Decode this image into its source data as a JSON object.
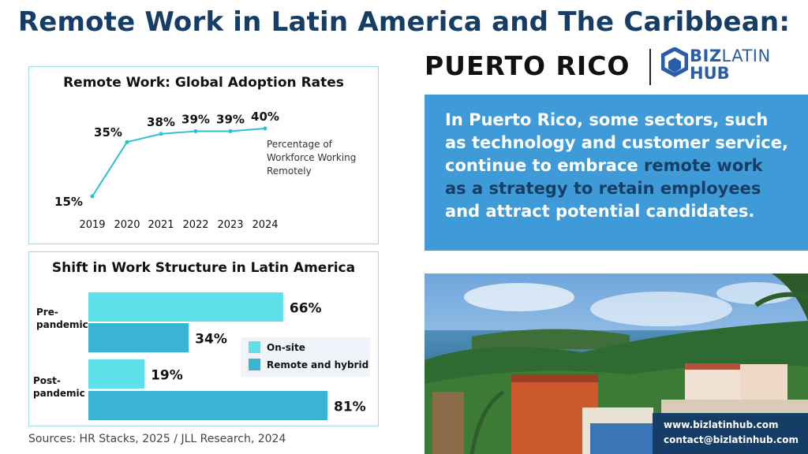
{
  "title": "Remote Work in Latin America and The Caribbean:",
  "country": "PUERTO RICO",
  "logo": {
    "biz": "BIZ",
    "latin": "LATIN",
    "hub": "HUB"
  },
  "callout": {
    "part1": "In Puerto Rico, some sectors, such as technology and customer service, continue to embrace ",
    "highlight": "remote work as a strategy to retain employees",
    "part2": " and attract potential candidates."
  },
  "contact": {
    "website": "www.bizlatinhub.com",
    "email": "contact@bizlatinhub.com"
  },
  "sources": "Sources: HR Stacks, 2025 /  JLL Research, 2024",
  "colors": {
    "title": "#163d66",
    "line": "#2bc0d2",
    "onsite": "#5ee0ea",
    "remote": "#3bb3d3",
    "callout": "#3f9bd7"
  },
  "chart_data": [
    {
      "type": "line",
      "title": "Remote Work: Global Adoption Rates",
      "x": [
        "2019",
        "2020",
        "2021",
        "2022",
        "2023",
        "2024"
      ],
      "y": [
        15,
        35,
        38,
        39,
        39,
        40
      ],
      "data_labels": [
        "15%",
        "35%",
        "38%",
        "39%",
        "39%",
        "40%"
      ],
      "annotation": "Percentage of Workforce Working Remotely",
      "annotation_lines": [
        "Percentage of",
        "Workforce Working",
        "Remotely"
      ],
      "grid": false
    },
    {
      "type": "bar",
      "orientation": "horizontal",
      "title": "Shift in Work Structure in Latin America",
      "categories": [
        "Pre-pandemic",
        "Post-pandemic"
      ],
      "category_lines": [
        [
          "Pre-",
          "pandemic"
        ],
        [
          "Post-",
          "pandemic"
        ]
      ],
      "series": [
        {
          "name": "On-site",
          "values": [
            66,
            19
          ]
        },
        {
          "name": "Remote and hybrid",
          "values": [
            34,
            81
          ]
        }
      ],
      "data_labels": [
        [
          "66%",
          "19%"
        ],
        [
          "34%",
          "81%"
        ]
      ],
      "legend": "right"
    }
  ]
}
